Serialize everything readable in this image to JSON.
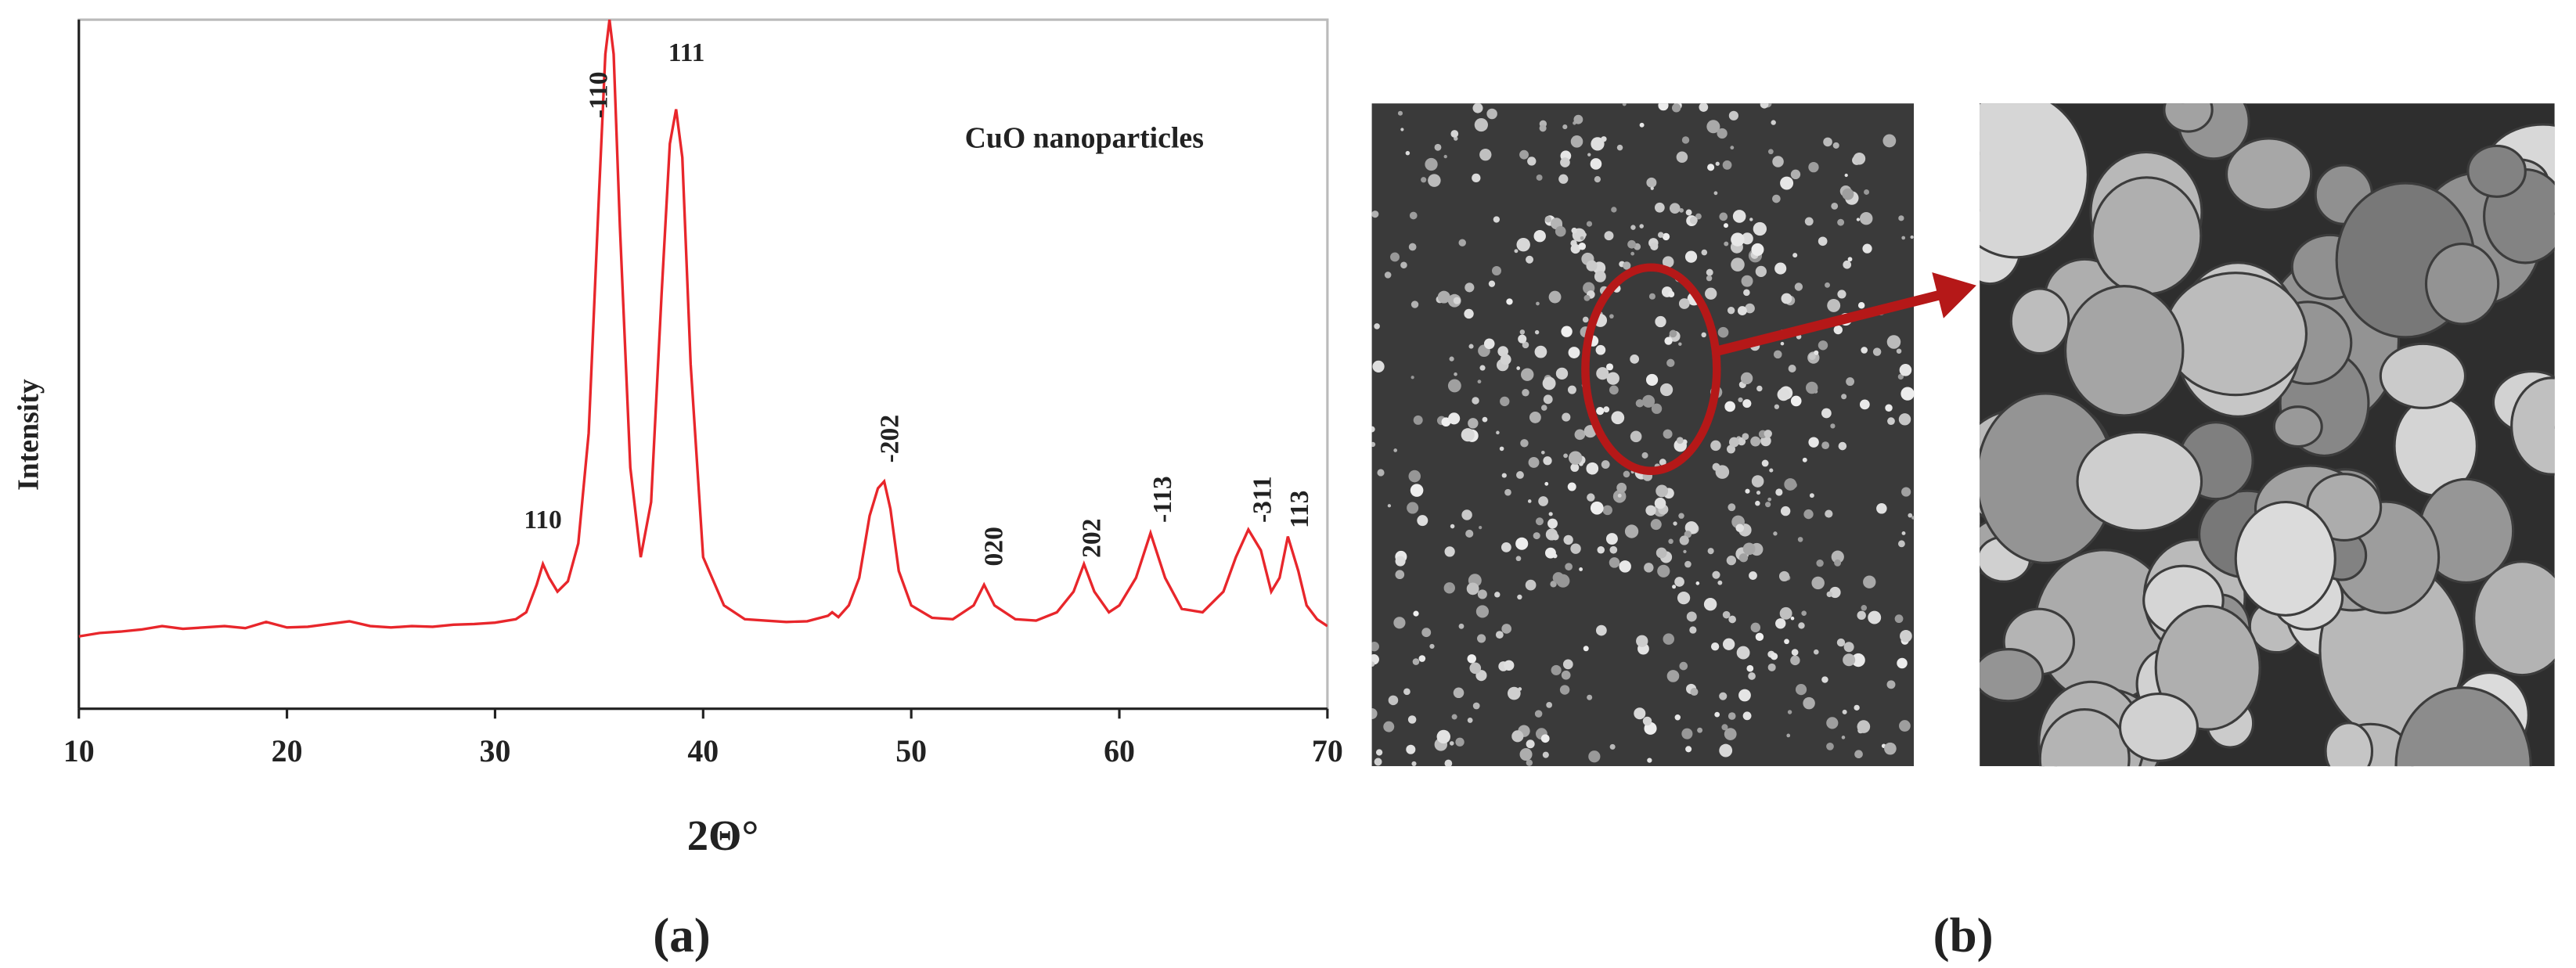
{
  "chart_data": {
    "type": "line",
    "title": "CuO nanoparticles",
    "xlabel": "2Θ°",
    "ylabel": "Intensity",
    "color": "#e8262b",
    "x": [
      10,
      11,
      12,
      13,
      14,
      15,
      16,
      17,
      18,
      19,
      20,
      21,
      22,
      23,
      24,
      25,
      26,
      27,
      28,
      29,
      30,
      31,
      31.5,
      32,
      32.3,
      32.6,
      33,
      33.5,
      34,
      34.5,
      35,
      35.3,
      35.5,
      35.7,
      36,
      36.5,
      37,
      37.5,
      38,
      38.4,
      38.7,
      39,
      39.4,
      40,
      41,
      42,
      43,
      44,
      45,
      46,
      46.2,
      46.5,
      47,
      47.5,
      48,
      48.4,
      48.7,
      49,
      49.4,
      50,
      51,
      52,
      53,
      53.5,
      54,
      55,
      56,
      57,
      57.8,
      58.3,
      58.8,
      59.5,
      60,
      60.8,
      61.5,
      62.2,
      63,
      64,
      65,
      65.6,
      66.2,
      66.8,
      67.3,
      67.7,
      68.1,
      68.6,
      69,
      69.5,
      70
    ],
    "values": [
      10.5,
      11,
      11.2,
      11.5,
      12,
      11.6,
      11.8,
      12,
      11.7,
      12.6,
      11.8,
      11.9,
      12.3,
      12.7,
      12,
      11.8,
      12,
      11.9,
      12.2,
      12.3,
      12.5,
      13,
      14,
      18,
      21,
      19,
      17,
      18.5,
      24,
      40,
      75,
      95,
      100,
      95,
      70,
      35,
      22,
      30,
      60,
      82,
      87,
      80,
      50,
      22,
      15,
      13,
      12.8,
      12.6,
      12.7,
      13.5,
      14,
      13.3,
      15,
      19,
      28,
      32,
      33,
      29,
      20,
      15,
      13.2,
      13,
      15,
      18,
      15,
      13,
      12.8,
      14,
      17,
      21,
      17,
      14,
      15,
      19,
      25.5,
      19,
      14.5,
      14,
      17,
      22,
      26,
      23,
      17,
      19,
      25,
      20,
      15,
      13,
      12
    ],
    "xlim": [
      10,
      70
    ],
    "ylim": [
      0,
      100
    ],
    "xticks": [
      10,
      20,
      30,
      40,
      50,
      60,
      70
    ],
    "annotations": [
      {
        "text": "110",
        "x": 32.3,
        "y": 26.2,
        "orientation": "horizontal"
      },
      {
        "text": "-110",
        "x": 34.9,
        "y": 85.7,
        "orientation": "vertical"
      },
      {
        "text": "111",
        "x": 39.2,
        "y": 94,
        "orientation": "horizontal"
      },
      {
        "text": "-202",
        "x": 48.9,
        "y": 35.7,
        "orientation": "vertical"
      },
      {
        "text": "020",
        "x": 53.9,
        "y": 20.7,
        "orientation": "vertical"
      },
      {
        "text": "202",
        "x": 58.6,
        "y": 21.9,
        "orientation": "vertical"
      },
      {
        "text": "-113",
        "x": 62,
        "y": 27,
        "orientation": "vertical"
      },
      {
        "text": "-311",
        "x": 66.8,
        "y": 27,
        "orientation": "vertical"
      },
      {
        "text": "113",
        "x": 68.6,
        "y": 26.2,
        "orientation": "vertical"
      }
    ]
  },
  "panel_labels": [
    "(a)",
    "(b)"
  ]
}
